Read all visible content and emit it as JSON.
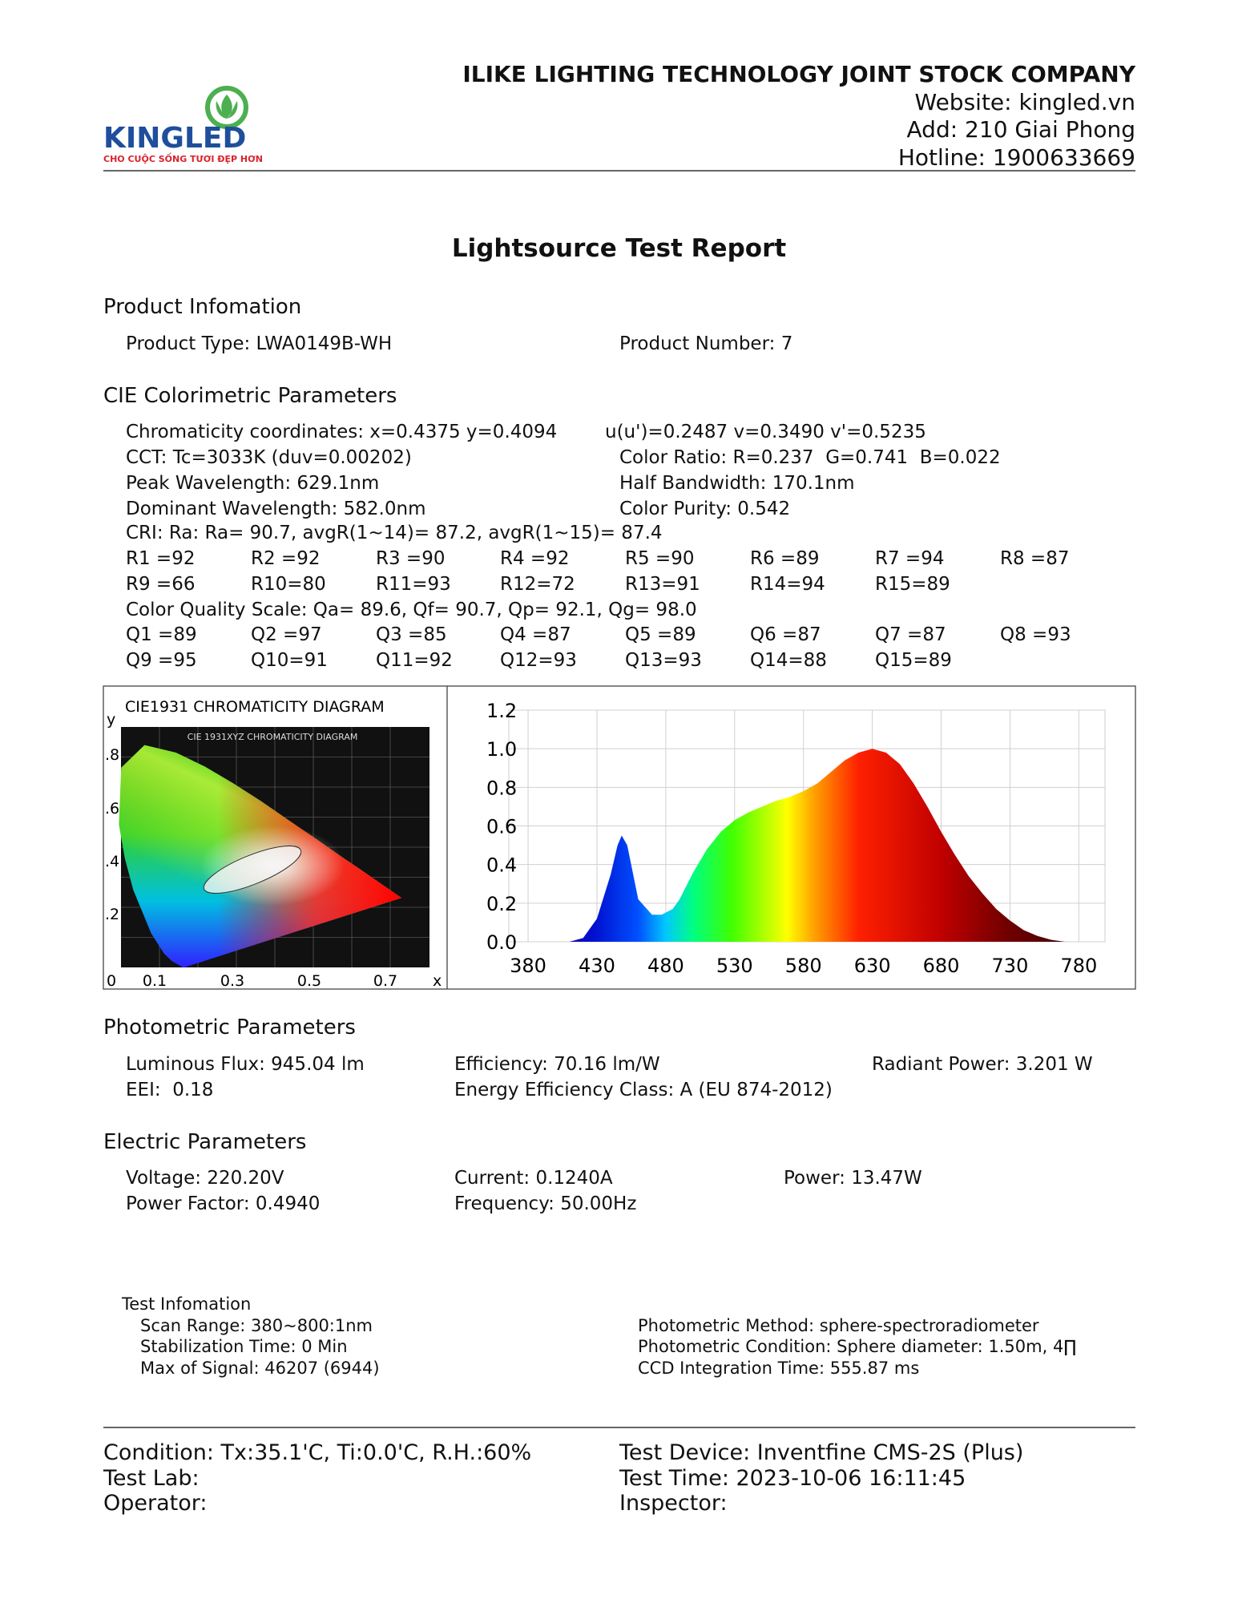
{
  "header": {
    "company": "ILIKE LIGHTING TECHNOLOGY JOINT STOCK COMPANY",
    "website": "Website: kingled.vn",
    "address": "Add: 210 Giai Phong",
    "hotline": "Hotline: 1900633669",
    "logo_name": "KINGLED",
    "logo_tagline": "CHO CUỘC SỐNG TƯƠI ĐẸP HƠN"
  },
  "title": "Lightsource Test Report",
  "product": {
    "heading": "Product Infomation",
    "type": "Product Type: LWA0149B-WH",
    "number": "Product Number: 7"
  },
  "cie": {
    "heading": "CIE Colorimetric Parameters",
    "chromaticity": "Chromaticity coordinates: x=0.4375 y=0.4094",
    "uv": "u(u')=0.2487 v=0.3490 v'=0.5235",
    "cct": "CCT: Tc=3033K (duv=0.00202)",
    "color_ratio": "Color Ratio: R=0.237  G=0.741  B=0.022",
    "peak": "Peak Wavelength: 629.1nm",
    "half_bandwidth": "Half Bandwidth: 170.1nm",
    "dominant": "Dominant Wavelength: 582.0nm",
    "purity": "Color Purity: 0.542",
    "cri": "CRI: Ra: Ra= 90.7, avgR(1~14)= 87.2, avgR(1~15)= 87.4",
    "r_values": [
      "R1 =92",
      "R2 =92",
      "R3 =90",
      "R4 =92",
      "R5 =90",
      "R6 =89",
      "R7 =94",
      "R8 =87",
      "R9 =66",
      "R10=80",
      "R11=93",
      "R12=72",
      "R13=91",
      "R14=94",
      "R15=89"
    ],
    "cqs": "Color Quality Scale: Qa= 89.6, Qf= 90.7, Qp= 92.1, Qg= 98.0",
    "q_values": [
      "Q1 =89",
      "Q2 =97",
      "Q3 =85",
      "Q4 =87",
      "Q5 =89",
      "Q6 =87",
      "Q7 =87",
      "Q8 =93",
      "Q9 =95",
      "Q10=91",
      "Q11=92",
      "Q12=93",
      "Q13=93",
      "Q14=88",
      "Q15=89"
    ]
  },
  "cie_diagram": {
    "title": "CIE1931 CHROMATICITY DIAGRAM",
    "inner_title": "CIE 1931XYZ CHROMATICITY DIAGRAM",
    "y_label": "y",
    "x_label": "x",
    "yticks": [
      ".8",
      ".6",
      ".4",
      ".2"
    ],
    "xticks": [
      "0",
      "0.1",
      "0.3",
      "0.5",
      "0.7"
    ]
  },
  "chart_data": {
    "type": "area",
    "x": [
      410,
      420,
      430,
      440,
      445,
      448,
      452,
      460,
      470,
      477,
      485,
      490,
      500,
      510,
      520,
      530,
      540,
      550,
      560,
      570,
      580,
      590,
      600,
      610,
      620,
      630,
      640,
      650,
      660,
      670,
      680,
      690,
      700,
      710,
      720,
      730,
      740,
      750,
      760,
      770
    ],
    "values": [
      0,
      0.02,
      0.12,
      0.35,
      0.5,
      0.55,
      0.5,
      0.22,
      0.14,
      0.14,
      0.17,
      0.22,
      0.36,
      0.48,
      0.57,
      0.63,
      0.67,
      0.7,
      0.73,
      0.75,
      0.78,
      0.82,
      0.88,
      0.94,
      0.98,
      1.0,
      0.98,
      0.92,
      0.82,
      0.7,
      0.57,
      0.45,
      0.34,
      0.25,
      0.17,
      0.11,
      0.06,
      0.03,
      0.01,
      0
    ],
    "xlim": [
      366,
      799
    ],
    "ylim": [
      0,
      1.2
    ],
    "xticks": [
      380,
      430,
      480,
      530,
      580,
      630,
      680,
      730,
      780
    ],
    "yticks": [
      {
        "value": 0,
        "label": "0.0"
      },
      0.2,
      0.4,
      0.6,
      0.8,
      {
        "value": 1,
        "label": "1.0"
      },
      1.2
    ],
    "grid": true
  },
  "photometric": {
    "heading": "Photometric Parameters",
    "flux": "Luminous Flux: 945.04 lm",
    "efficiency": "Efficiency: 70.16 lm/W",
    "radiant": "Radiant Power: 3.201 W",
    "eei": "EEI:  0.18",
    "energy_class": "Energy Efficiency Class: A (EU 874-2012)"
  },
  "electric": {
    "heading": "Electric Parameters",
    "voltage": "Voltage: 220.20V",
    "current": "Current: 0.1240A",
    "power": "Power: 13.47W",
    "power_factor": "Power Factor: 0.4940",
    "frequency": "Frequency: 50.00Hz"
  },
  "test_info": {
    "heading": "Test Infomation",
    "scan_range": "Scan Range: 380~800:1nm",
    "stabilization": "Stabilization Time: 0 Min",
    "max_signal": "Max of Signal: 46207 (6944)",
    "method": "Photometric Method: sphere-spectroradiometer",
    "condition": "Photometric Condition: Sphere diameter: 1.50m, 4∏",
    "ccd": "CCD Integration Time: 555.87 ms"
  },
  "footer": {
    "condition": "Condition: Tx:35.1'C, Ti:0.0'C, R.H.:60%",
    "device": "Test Device: Inventfine CMS-2S (Plus)",
    "lab": "Test Lab:",
    "time": "Test Time: 2023-10-06 16:11:45",
    "operator": "Operator:",
    "inspector": "Inspector:"
  }
}
